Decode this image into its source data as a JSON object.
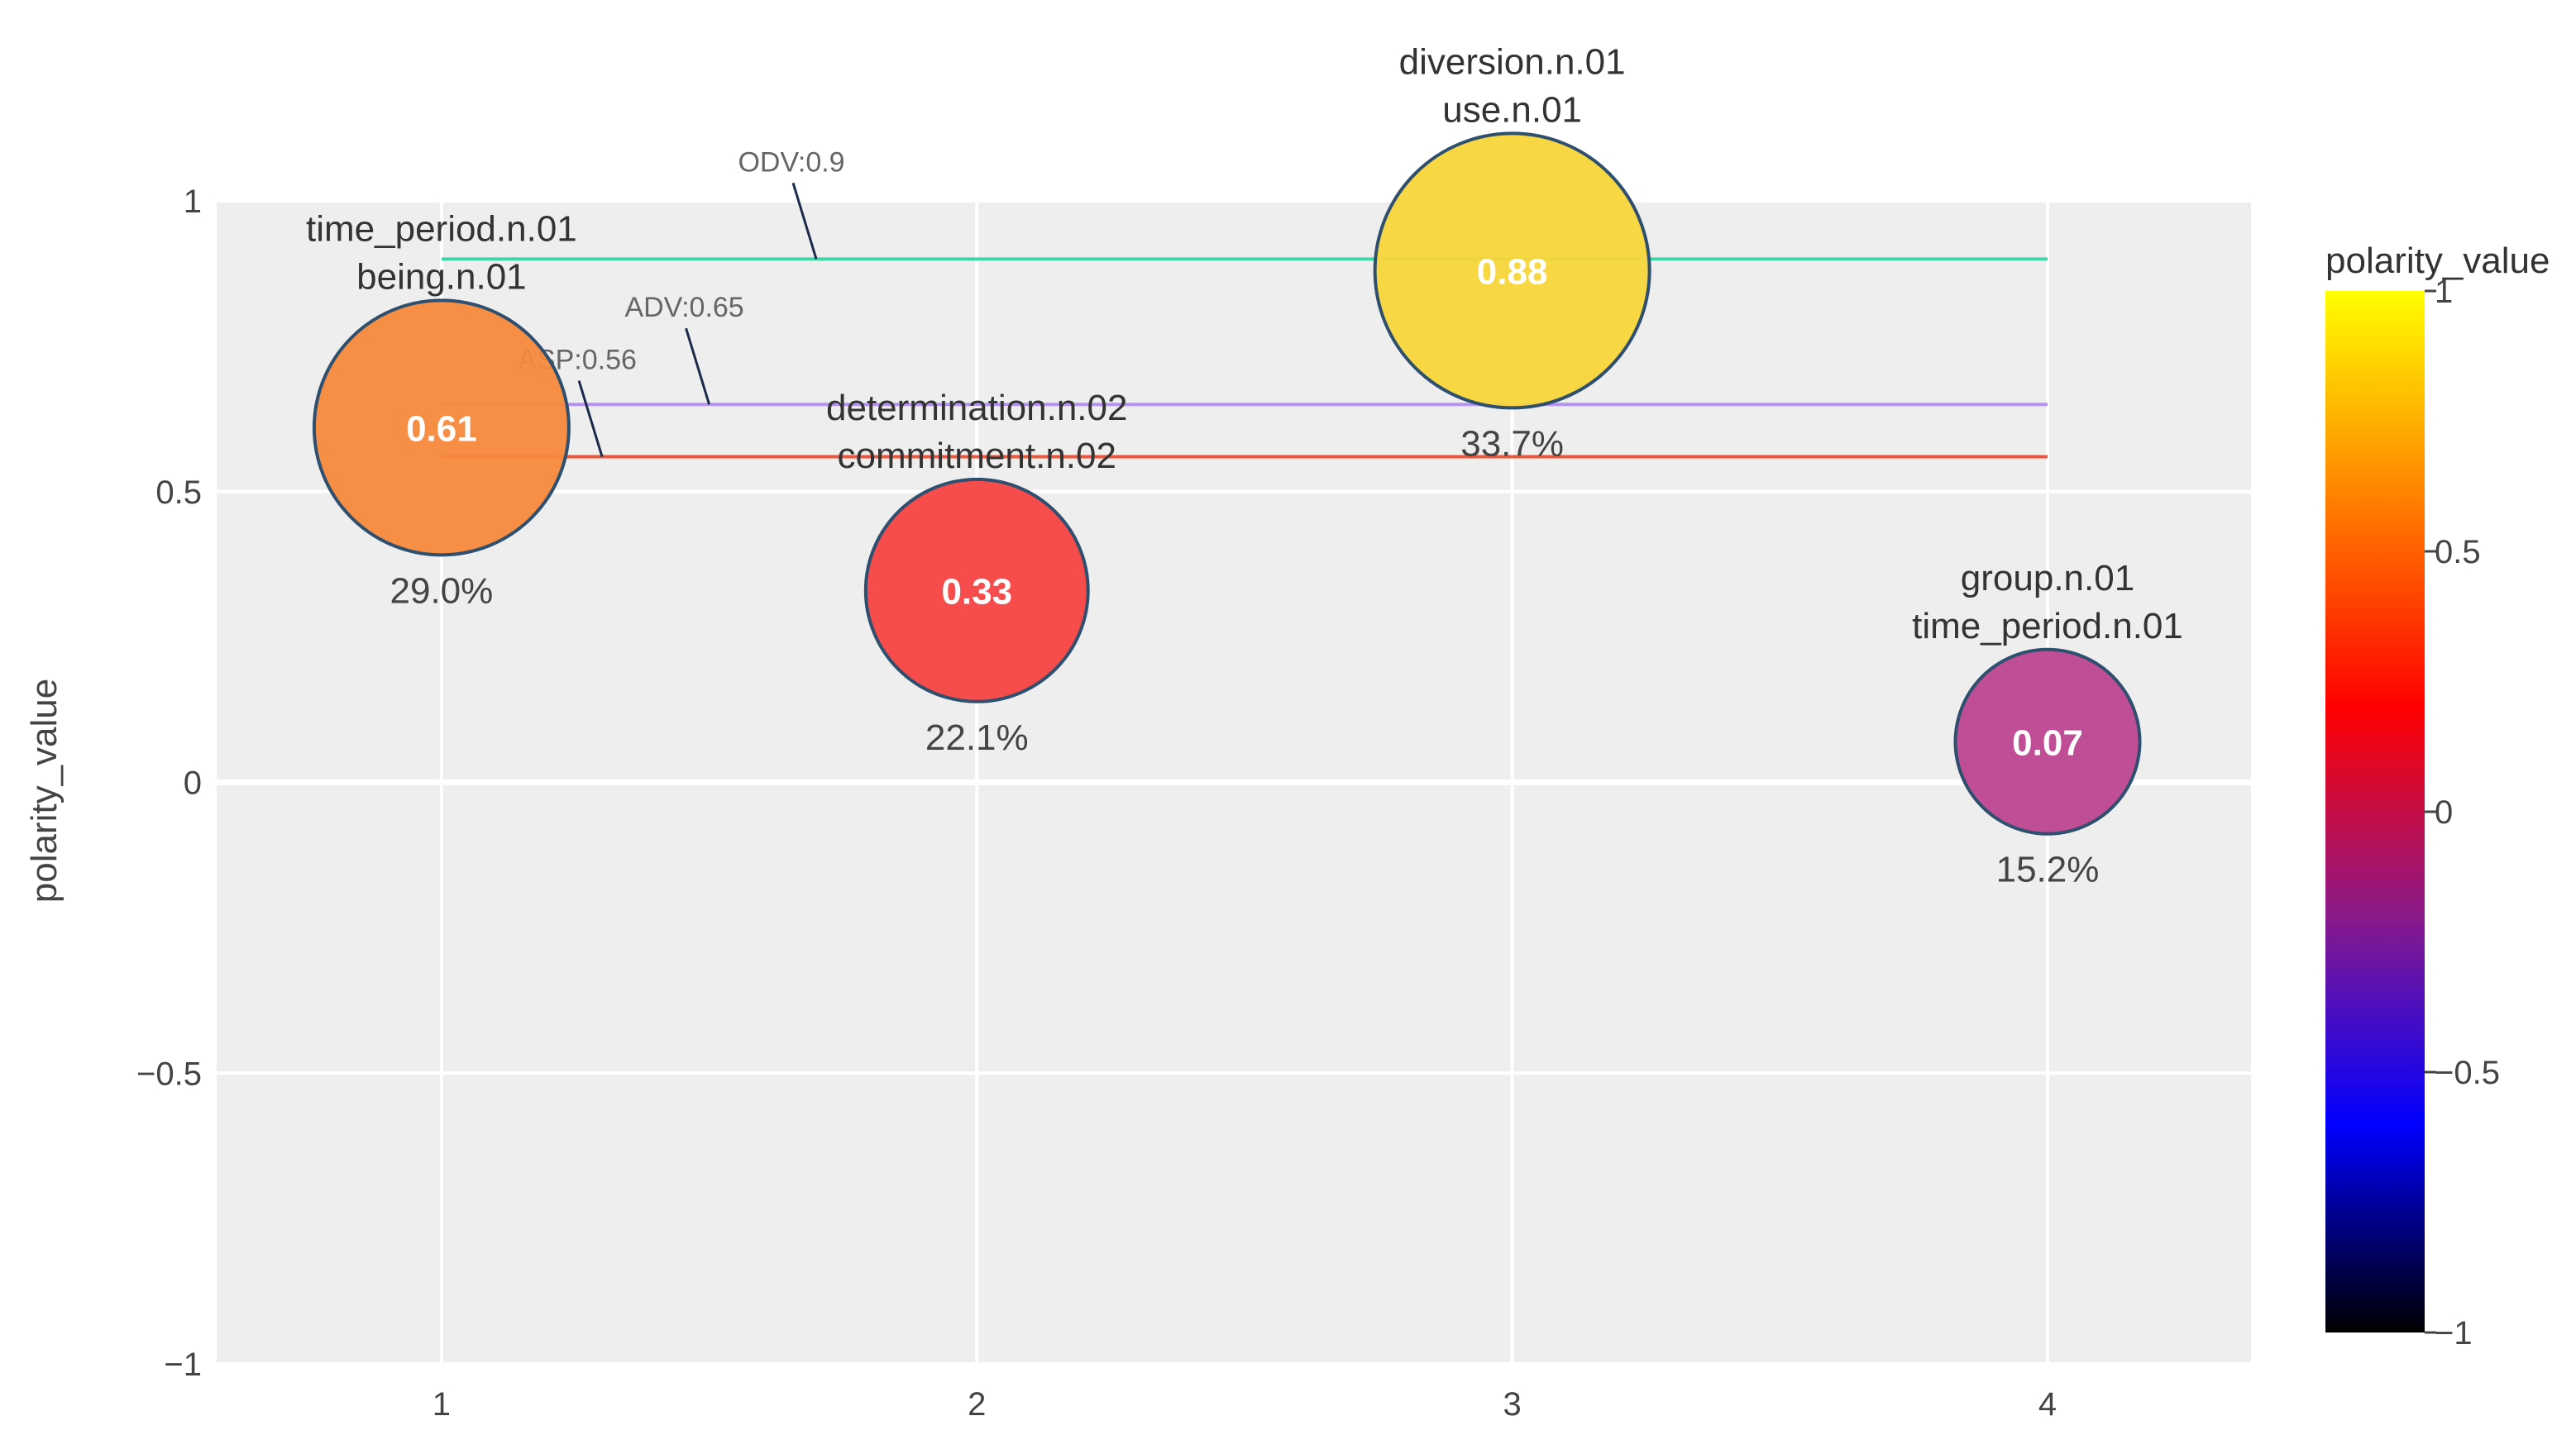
{
  "chart_data": {
    "type": "scatter",
    "title": "",
    "xlabel": "",
    "ylabel": "polarity_value",
    "xlim": [
      0.58,
      4.38
    ],
    "ylim": [
      -1,
      1
    ],
    "x_ticks": [
      "1",
      "2",
      "3",
      "4"
    ],
    "y_ticks": [
      "1",
      "0.5",
      "0",
      "−0.5",
      "−1"
    ],
    "grid": true,
    "points": [
      {
        "x": 1,
        "y": 0.61,
        "label": "0.61",
        "percent": "29.0%",
        "percent_value": 29.0,
        "synsets": [
          "time_period.n.01",
          "being.n.01"
        ],
        "color": "#F5883C"
      },
      {
        "x": 2,
        "y": 0.33,
        "label": "0.33",
        "percent": "22.1%",
        "percent_value": 22.1,
        "synsets": [
          "determination.n.02",
          "commitment.n.02"
        ],
        "color": "#F54242"
      },
      {
        "x": 3,
        "y": 0.88,
        "label": "0.88",
        "percent": "33.7%",
        "percent_value": 33.7,
        "synsets": [
          "diversion.n.01",
          "use.n.01"
        ],
        "color": "#F7D63A"
      },
      {
        "x": 4,
        "y": 0.07,
        "label": "0.07",
        "percent": "15.2%",
        "percent_value": 15.2,
        "synsets": [
          "group.n.01",
          "time_period.n.01"
        ],
        "color": "#BC4590"
      }
    ],
    "reference_lines": [
      {
        "name": "ODV",
        "label": "ODV:0.9",
        "y": 0.9,
        "x_start": 1,
        "x_end": 4,
        "color": "#3DD6A8",
        "annot_x": 1.7
      },
      {
        "name": "ADV",
        "label": "ADV:0.65",
        "y": 0.65,
        "x_start": 1,
        "x_end": 4,
        "color": "#B593F0",
        "annot_x": 1.5
      },
      {
        "name": "ASP",
        "label": "ASP:0.56",
        "y": 0.56,
        "x_start": 1,
        "x_end": 4,
        "color": "#EF553B",
        "annot_x": 1.3
      }
    ],
    "colorbar": {
      "title": "polarity_value",
      "range": [
        -1,
        1
      ],
      "ticks": [
        "1",
        "0.5",
        "0",
        "−0.5",
        "−1"
      ],
      "tick_values": [
        1,
        0.5,
        0,
        -0.5,
        -1
      ],
      "colors": [
        "#FFFF00",
        "#FF8000",
        "#FF0000",
        "#8A1A8A",
        "#0000FF",
        "#000000"
      ]
    }
  }
}
